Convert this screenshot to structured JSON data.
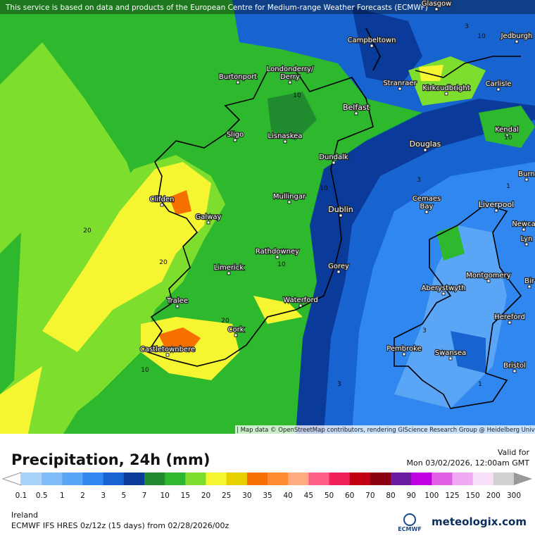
{
  "banner": "This service is based on data and products of the European Centre for Medium-range Weather Forecasts (ECMWF)",
  "cities": [
    "Glasgow",
    "Campbeltown",
    "Jedburgh",
    "Burtonport",
    "Londonderry/\nDerry",
    "Stranraer",
    "Kirkcudbright",
    "Carlisle",
    "Belfast",
    "Sligo",
    "Lisnaskea",
    "Kendal",
    "Douglas",
    "Dundalk",
    "Burn",
    "Clifden",
    "Mullingar",
    "Cemaes\nBay",
    "Liverpool",
    "Galway",
    "Dublin",
    "Newca",
    "Lyn",
    "Rathdowney",
    "Limerick",
    "Gorey",
    "Montgomery",
    "Aberystwyth",
    "Bir",
    "Tralee",
    "Waterford",
    "Hereford",
    "Cork",
    "Castletownbere",
    "Pembroke",
    "Swansea",
    "Bristol"
  ],
  "contours": [
    "3",
    "10",
    "10",
    "10",
    "20",
    "20",
    "20",
    "10",
    "10",
    "1",
    "3",
    "3",
    "1",
    "10",
    "3"
  ],
  "attribution": "| Map data © OpenStreetMap contributors, rendering GIScience Research Group @ Heidelberg University",
  "title": "Precipitation, 24h (mm)",
  "valid_label": "Valid for",
  "valid_time": "Mon 03/02/2026, 12:00am GMT",
  "legend": {
    "labels": [
      "0.1",
      "0.5",
      "1",
      "2",
      "3",
      "5",
      "7",
      "10",
      "15",
      "20",
      "25",
      "30",
      "35",
      "40",
      "45",
      "50",
      "60",
      "70",
      "80",
      "90",
      "100",
      "125",
      "150",
      "200",
      "300"
    ],
    "colors": [
      "#a9d3fb",
      "#7fbcf8",
      "#5aa5f5",
      "#2f87ef",
      "#1763cf",
      "#0a3a9a",
      "#1f8b2e",
      "#2eb82e",
      "#7ede2e",
      "#f5f532",
      "#e8d000",
      "#f57000",
      "#ff8c30",
      "#ffaa80",
      "#ff6088",
      "#f0205a",
      "#c00010",
      "#8b0010",
      "#6a1ba0",
      "#c000e0",
      "#e060e8",
      "#f0a8f0",
      "#f8e0f8",
      "#d0d0d0"
    ]
  },
  "region": "Ireland",
  "model": "ECMWF IFS HRES 0z/12z (15 days) from  02/28/2026/00z",
  "logo_ecmwf": "ECMWF",
  "logo_site": "meteologix.com"
}
